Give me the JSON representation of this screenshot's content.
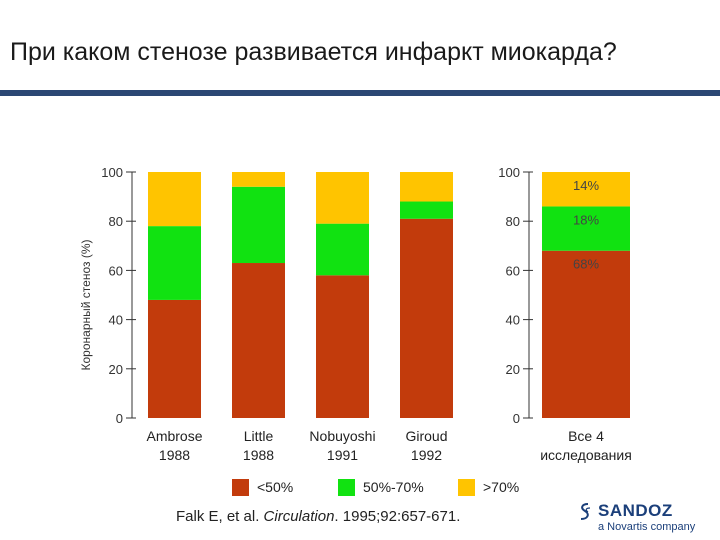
{
  "title": "При каком стенозе развивается инфаркт миокарда?",
  "citation": {
    "before": "Falk E, et al. ",
    "journal": "Circulation",
    "after": ". 1995;92:657-671."
  },
  "logo": {
    "word": "SANDOZ",
    "sub": "a Novartis company"
  },
  "colors": {
    "low": "#c23b0c",
    "mid": "#11e211",
    "high": "#ffc400"
  },
  "chart_data": [
    {
      "type": "bar",
      "stacked": true,
      "ylabel": "Коронарный стеноз (%)",
      "ylim": [
        0,
        100
      ],
      "yticks": [
        0,
        20,
        40,
        60,
        80,
        100
      ],
      "categories": [
        {
          "name": "Ambrose",
          "year": "1988"
        },
        {
          "name": "Little",
          "year": "1988"
        },
        {
          "name": "Nobuyoshi",
          "year": "1991"
        },
        {
          "name": "Giroud",
          "year": "1992"
        }
      ],
      "series": [
        {
          "name": "<50%",
          "color": "#c23b0c",
          "values": [
            48,
            63,
            58,
            81
          ]
        },
        {
          "name": "50%-70%",
          "color": "#11e211",
          "values": [
            30,
            31,
            21,
            7
          ]
        },
        {
          "name": ">70%",
          "color": "#ffc400",
          "values": [
            22,
            6,
            21,
            12
          ]
        }
      ],
      "legend": "bottom"
    },
    {
      "type": "bar",
      "stacked": true,
      "ylim": [
        0,
        100
      ],
      "yticks": [
        0,
        20,
        40,
        60,
        80,
        100
      ],
      "categories": [
        {
          "name": "Все 4",
          "year": "исследования"
        }
      ],
      "series": [
        {
          "name": "<50%",
          "color": "#c23b0c",
          "values": [
            68
          ],
          "label": "68%"
        },
        {
          "name": "50%-70%",
          "color": "#11e211",
          "values": [
            18
          ],
          "label": "18%"
        },
        {
          "name": ">70%",
          "color": "#ffc400",
          "values": [
            14
          ],
          "label": "14%"
        }
      ]
    }
  ]
}
